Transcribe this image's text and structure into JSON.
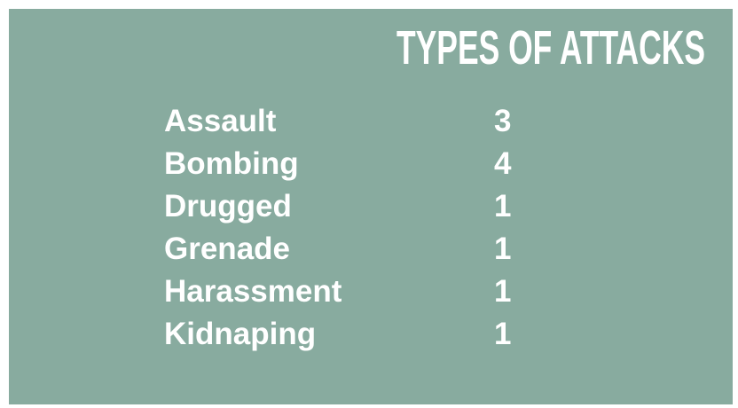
{
  "title": "TYPES OF ATTACKS",
  "table": {
    "rows": [
      [
        "Assault",
        3
      ],
      [
        "Bombing",
        4
      ],
      [
        "Drugged",
        1
      ],
      [
        "Grenade",
        1
      ],
      [
        "Harassment",
        1
      ],
      [
        "Kidnaping",
        1
      ]
    ]
  }
}
